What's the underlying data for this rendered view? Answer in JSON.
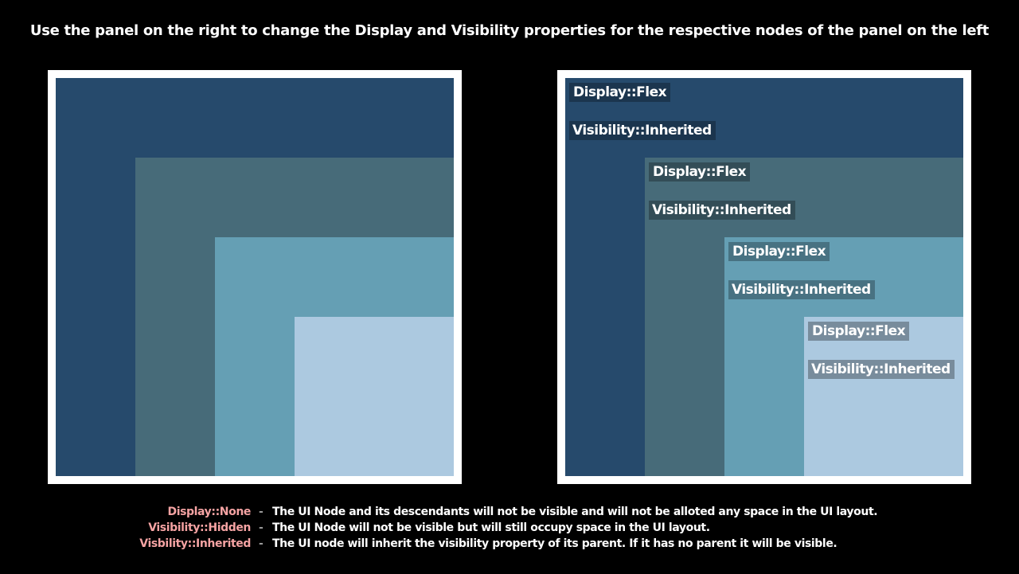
{
  "title": "Use the panel on the right to change the Display and Visibility properties for the respective nodes of the panel on the left",
  "colors": {
    "level0": "#264a6c",
    "level1": "#476b79",
    "level2": "#659fb4",
    "level3": "#acc9e0",
    "legend_key": "#f5a3a3",
    "border": "#ffffff"
  },
  "controls": [
    {
      "display": "Display::Flex",
      "visibility": "Visibility::Inherited"
    },
    {
      "display": "Display::Flex",
      "visibility": "Visibility::Inherited"
    },
    {
      "display": "Display::Flex",
      "visibility": "Visibility::Inherited"
    },
    {
      "display": "Display::Flex",
      "visibility": "Visibility::Inherited"
    }
  ],
  "legend": [
    {
      "key": "Display::None",
      "dash": "-",
      "desc": "The UI Node and its descendants will not be visible and will not be alloted any space in the UI layout."
    },
    {
      "key": "Visibility::Hidden",
      "dash": "-",
      "desc": "The UI Node will not be visible but will still occupy space in the UI layout."
    },
    {
      "key": "Visbility::Inherited",
      "dash": "-",
      "desc": "The UI node will inherit the visibility property of its parent. If it has no parent it will be visible."
    }
  ]
}
